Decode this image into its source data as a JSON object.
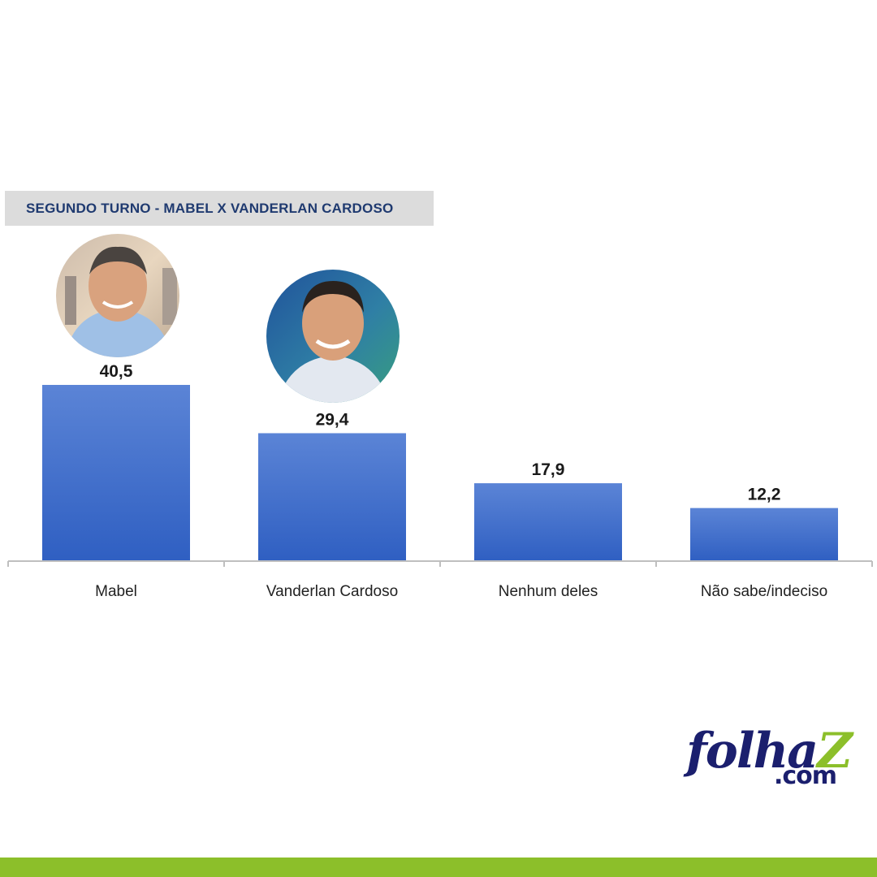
{
  "chart_data": {
    "type": "bar",
    "title": "SEGUNDO TURNO - MABEL X VANDERLAN CARDOSO",
    "categories": [
      "Mabel",
      "Vanderlan Cardoso",
      "Nenhum deles",
      "Não sabe/indeciso"
    ],
    "values": [
      40.5,
      29.4,
      17.9,
      12.2
    ],
    "value_labels": [
      "40,5",
      "29,4",
      "17,9",
      "12,2"
    ],
    "xlabel": "",
    "ylabel": "",
    "ylim": [
      0,
      40.5
    ],
    "grid": false,
    "bar_color_top": "#5b84d6",
    "bar_color_bottom": "#2f5fc2",
    "candidate_photos": [
      "Mabel",
      "Vanderlan Cardoso"
    ]
  },
  "brand": {
    "main": "folha",
    "z": "Z",
    "sub": ".com",
    "color_primary": "#1b1f6e",
    "color_accent": "#8cbf2a"
  },
  "colors": {
    "title_bg": "#dcdcdc",
    "title_text": "#1f3a70",
    "axis": "#bfbfbf",
    "bottom_bar": "#8cbf2a"
  }
}
